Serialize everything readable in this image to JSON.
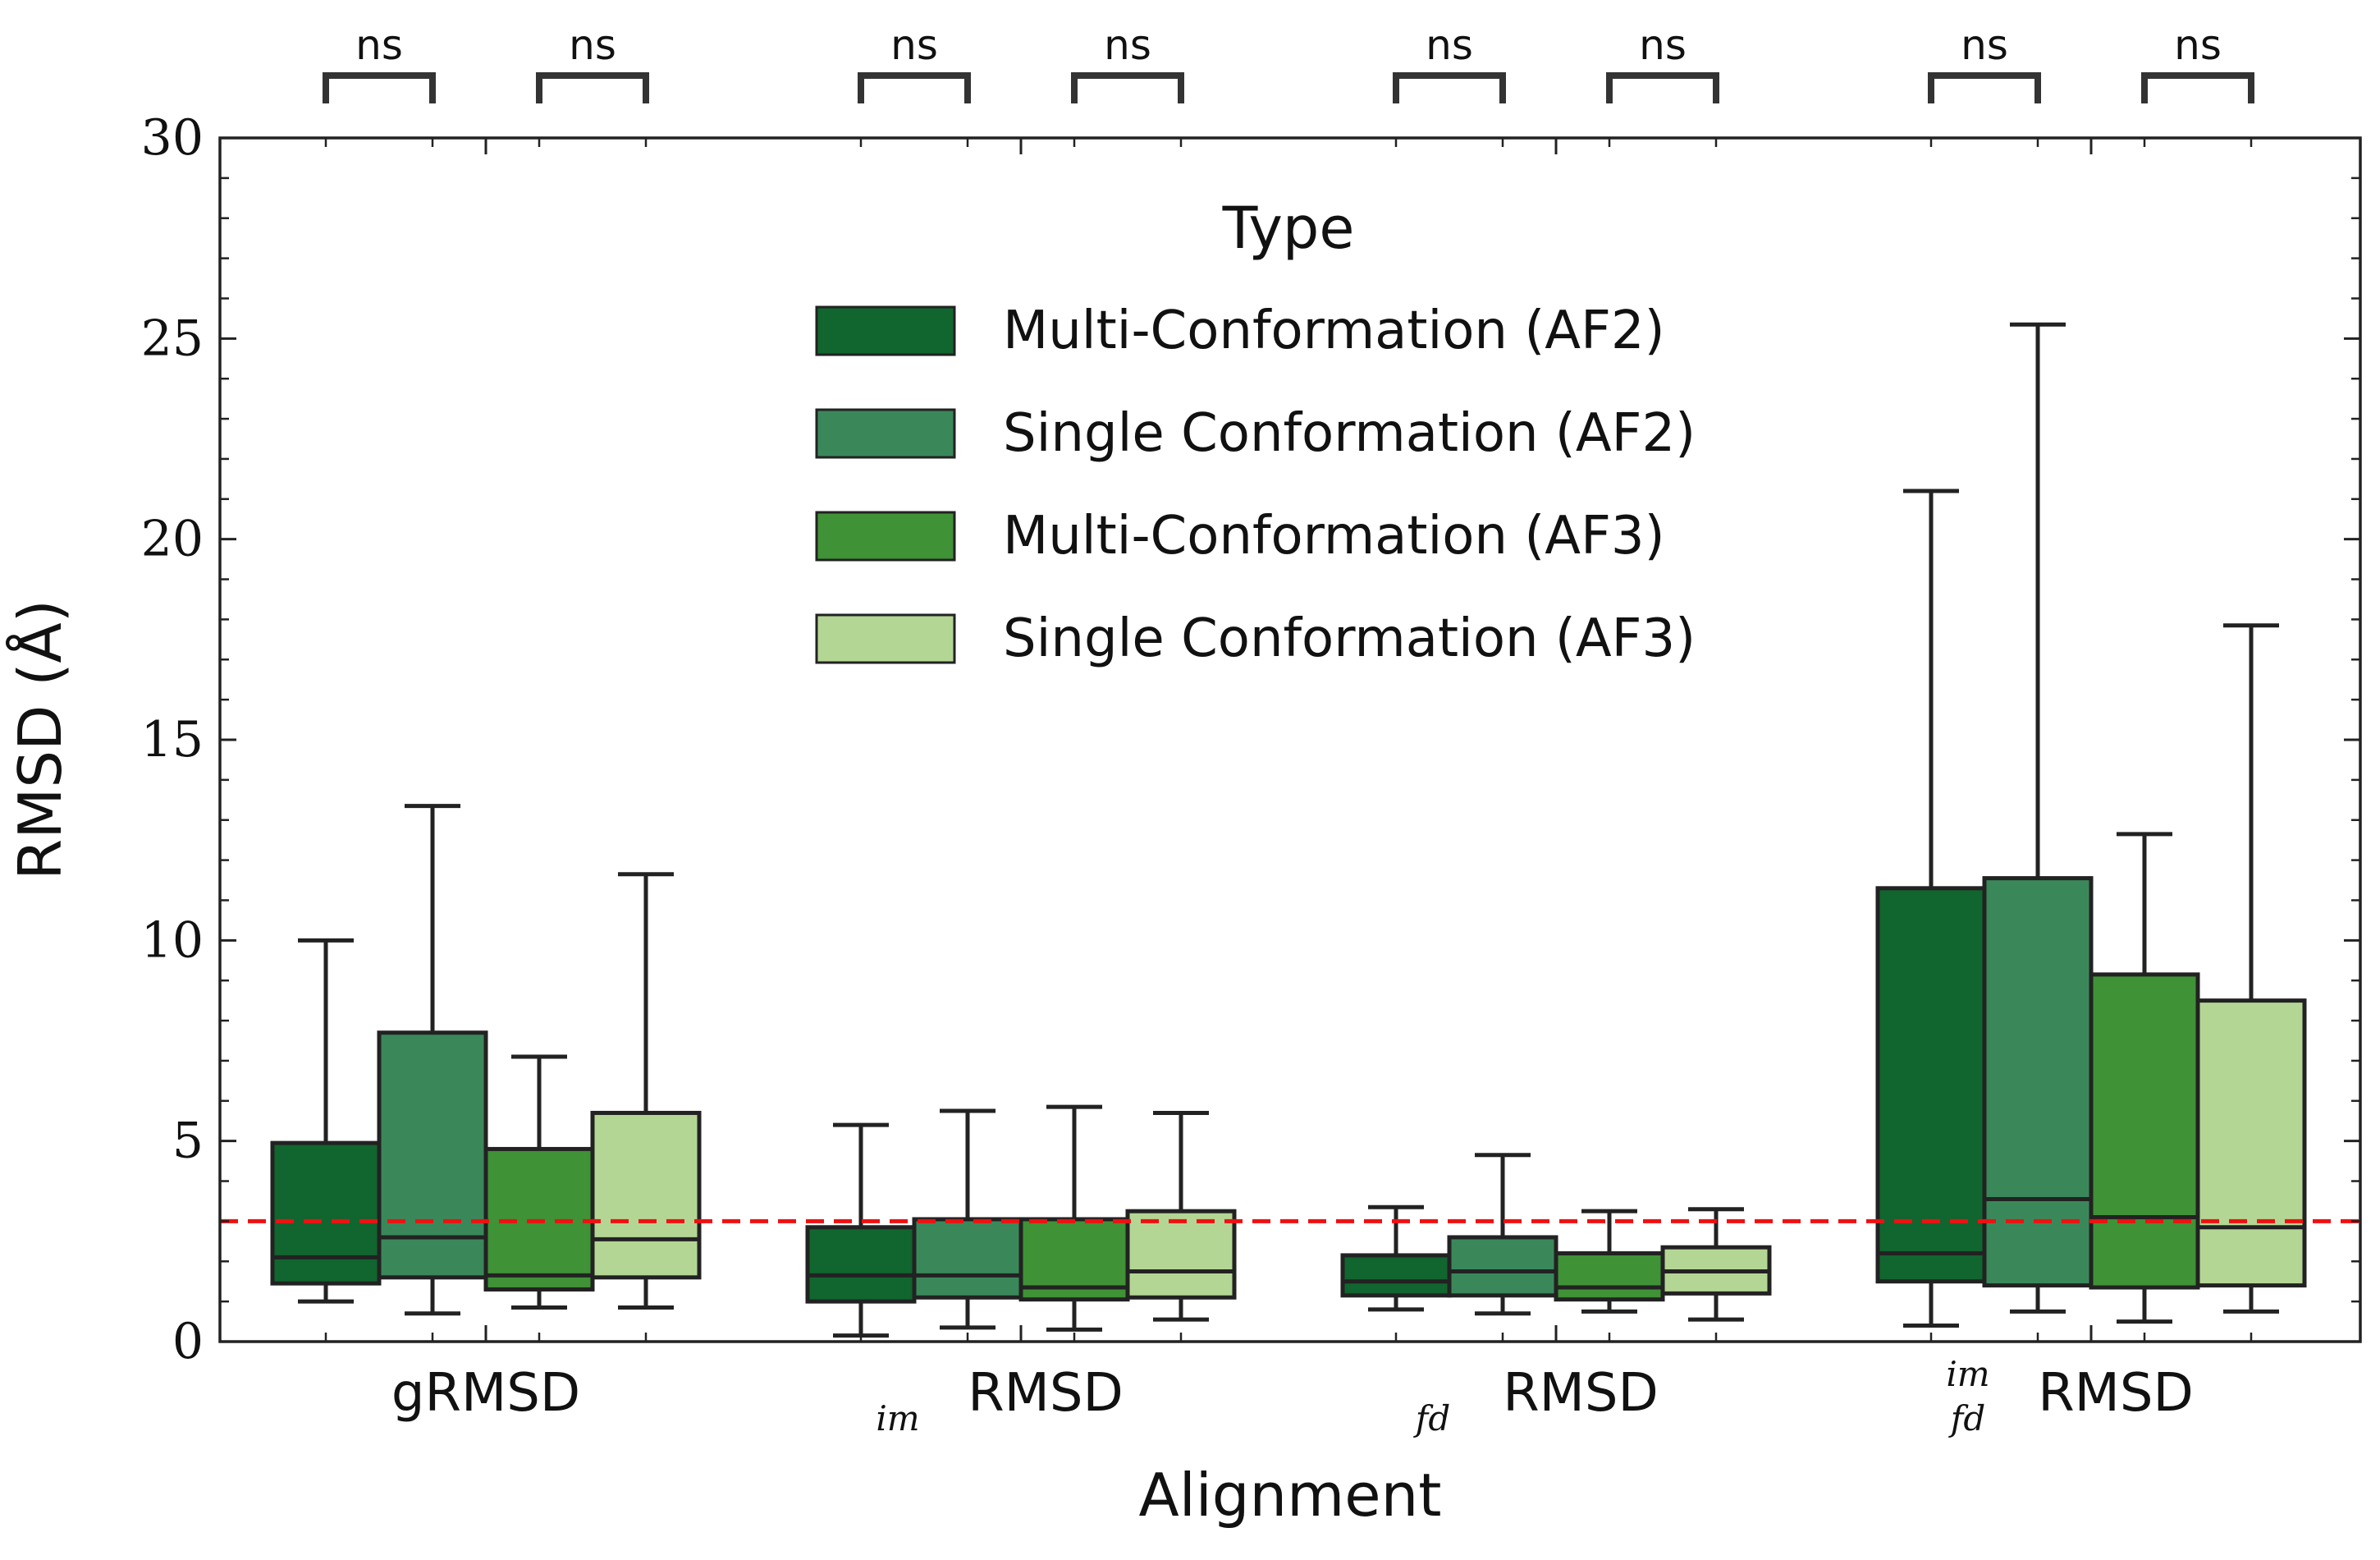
{
  "chart_data": {
    "type": "box",
    "title": "",
    "xlabel": "Alignment",
    "ylabel": "RMSD (Å)",
    "ylim": [
      0,
      30
    ],
    "yticks": [
      "0",
      "5",
      "10",
      "15",
      "20",
      "25",
      "30"
    ],
    "grid": false,
    "legend": {
      "title": "Type",
      "placement": "top-center"
    },
    "categories": [
      {
        "main": "gRMSD",
        "sub": "",
        "sup": ""
      },
      {
        "main": "RMSD",
        "sub": "im",
        "sup": ""
      },
      {
        "main": "RMSD",
        "sub": "fd",
        "sup": ""
      },
      {
        "main": "RMSD",
        "sub": "fd",
        "sup": "im"
      }
    ],
    "series": [
      {
        "name": "Multi-Conformation (AF2)",
        "color": "#11652f",
        "boxes": [
          {
            "whislo": 1.0,
            "q1": 1.45,
            "med": 2.1,
            "q3": 4.95,
            "whishi": 10.0
          },
          {
            "whislo": 0.15,
            "q1": 1.0,
            "med": 1.65,
            "q3": 2.85,
            "whishi": 5.4
          },
          {
            "whislo": 0.8,
            "q1": 1.15,
            "med": 1.5,
            "q3": 2.15,
            "whishi": 3.35
          },
          {
            "whislo": 0.4,
            "q1": 1.5,
            "med": 2.2,
            "q3": 11.3,
            "whishi": 21.2
          }
        ]
      },
      {
        "name": "Single Conformation (AF2)",
        "color": "#3a885a",
        "boxes": [
          {
            "whislo": 0.7,
            "q1": 1.6,
            "med": 2.6,
            "q3": 7.7,
            "whishi": 13.35
          },
          {
            "whislo": 0.35,
            "q1": 1.1,
            "med": 1.65,
            "q3": 3.05,
            "whishi": 5.75
          },
          {
            "whislo": 0.7,
            "q1": 1.15,
            "med": 1.75,
            "q3": 2.6,
            "whishi": 4.65
          },
          {
            "whislo": 0.75,
            "q1": 1.4,
            "med": 3.55,
            "q3": 11.55,
            "whishi": 25.35
          }
        ]
      },
      {
        "name": "Multi-Conformation (AF3)",
        "color": "#3f9236",
        "boxes": [
          {
            "whislo": 0.85,
            "q1": 1.3,
            "med": 1.65,
            "q3": 4.8,
            "whishi": 7.1
          },
          {
            "whislo": 0.3,
            "q1": 1.05,
            "med": 1.35,
            "q3": 3.05,
            "whishi": 5.85
          },
          {
            "whislo": 0.75,
            "q1": 1.05,
            "med": 1.35,
            "q3": 2.2,
            "whishi": 3.25
          },
          {
            "whislo": 0.5,
            "q1": 1.35,
            "med": 3.1,
            "q3": 9.15,
            "whishi": 12.65
          }
        ]
      },
      {
        "name": "Single Conformation (AF3)",
        "color": "#b4d694",
        "boxes": [
          {
            "whislo": 0.85,
            "q1": 1.6,
            "med": 2.55,
            "q3": 5.7,
            "whishi": 11.65
          },
          {
            "whislo": 0.55,
            "q1": 1.1,
            "med": 1.75,
            "q3": 3.25,
            "whishi": 5.7
          },
          {
            "whislo": 0.55,
            "q1": 1.2,
            "med": 1.75,
            "q3": 2.35,
            "whishi": 3.3
          },
          {
            "whislo": 0.75,
            "q1": 1.4,
            "med": 2.85,
            "q3": 8.5,
            "whishi": 17.85
          }
        ]
      }
    ],
    "reference_line": {
      "y": 3.0,
      "color": "#ee1111",
      "style": "dashed"
    },
    "significance": [
      {
        "category": 0,
        "pair": [
          0,
          1
        ],
        "label": "ns"
      },
      {
        "category": 0,
        "pair": [
          2,
          3
        ],
        "label": "ns"
      },
      {
        "category": 1,
        "pair": [
          0,
          1
        ],
        "label": "ns"
      },
      {
        "category": 1,
        "pair": [
          2,
          3
        ],
        "label": "ns"
      },
      {
        "category": 2,
        "pair": [
          0,
          1
        ],
        "label": "ns"
      },
      {
        "category": 2,
        "pair": [
          2,
          3
        ],
        "label": "ns"
      },
      {
        "category": 3,
        "pair": [
          0,
          1
        ],
        "label": "ns"
      },
      {
        "category": 3,
        "pair": [
          2,
          3
        ],
        "label": "ns"
      }
    ]
  }
}
